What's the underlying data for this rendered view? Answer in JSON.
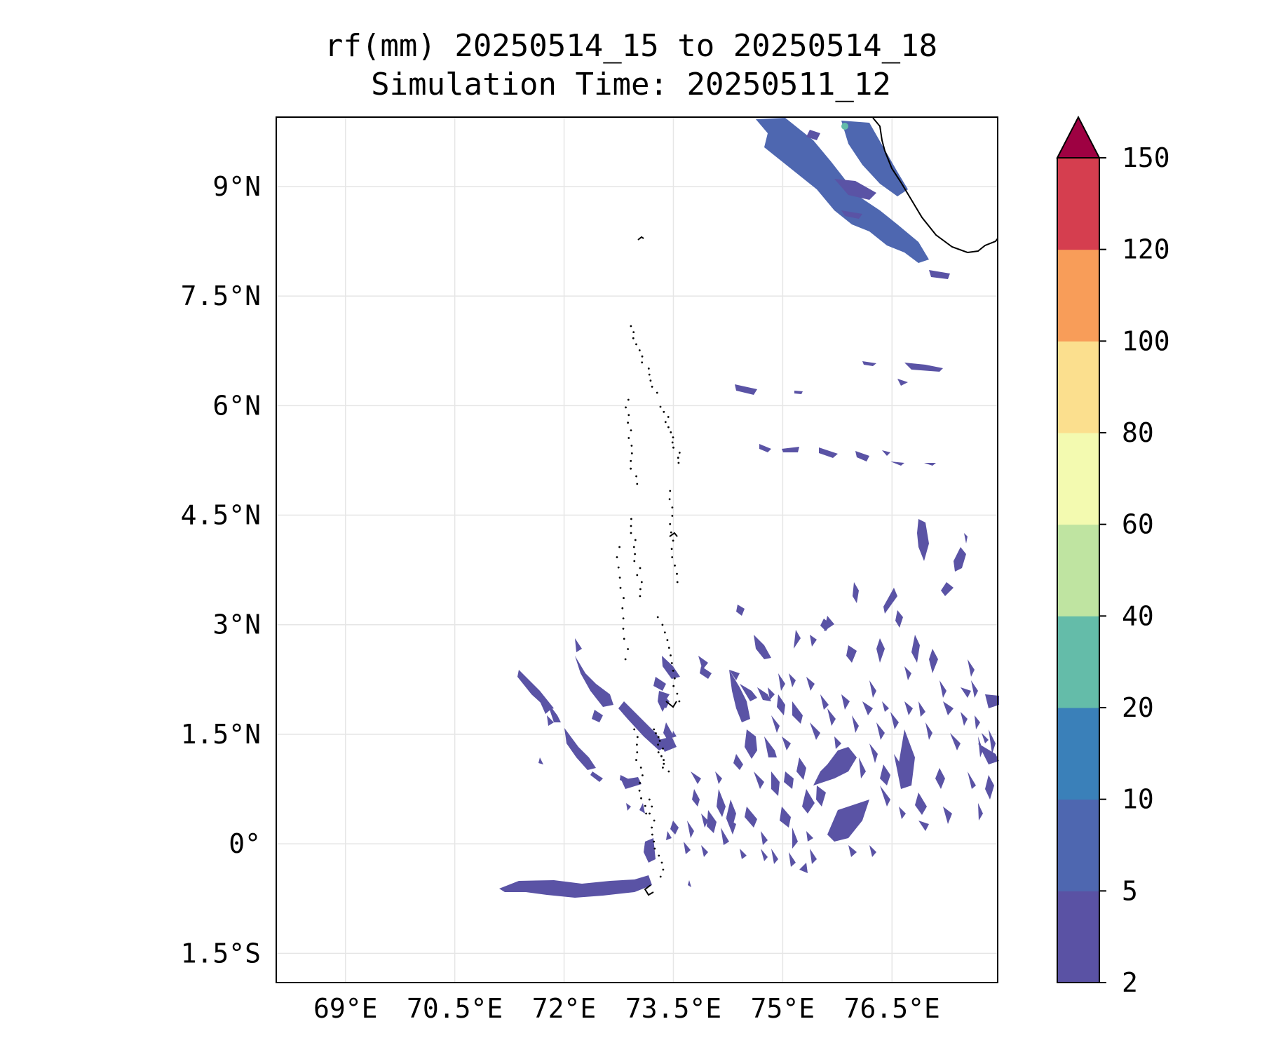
{
  "title": {
    "line1": "rf(mm) 20250514_15 to 20250514_18",
    "line2": "Simulation Time: 20250511_12"
  },
  "map": {
    "lat_ticks": [
      "9°N",
      "7.5°N",
      "6°N",
      "4.5°N",
      "3°N",
      "1.5°N",
      "0°",
      "1.5°S"
    ],
    "lon_ticks": [
      "69°E",
      "70.5°E",
      "72°E",
      "73.5°E",
      "75°E",
      "76.5°E"
    ],
    "lat_values": [
      9,
      7.5,
      6,
      4.5,
      3,
      1.5,
      0,
      -1.5
    ],
    "lon_values": [
      69,
      70.5,
      72,
      73.5,
      75,
      76.5
    ],
    "extent": {
      "lon_min": 68.05,
      "lon_max": 77.95,
      "lat_min": -1.9,
      "lat_max": 9.95
    },
    "gridlines": true,
    "rain_color_main": "#5a53a5",
    "coast_color": "#000000"
  },
  "colorbar": {
    "levels": [
      "2",
      "5",
      "10",
      "20",
      "40",
      "60",
      "80",
      "100",
      "120",
      "150"
    ],
    "colors": [
      "#5a52a4",
      "#4e67b0",
      "#3a80b9",
      "#64bca9",
      "#bfe4a1",
      "#f3fab0",
      "#fbdf8e",
      "#f89d59",
      "#d53e4f",
      "#9e0142"
    ],
    "extend": "max"
  }
}
